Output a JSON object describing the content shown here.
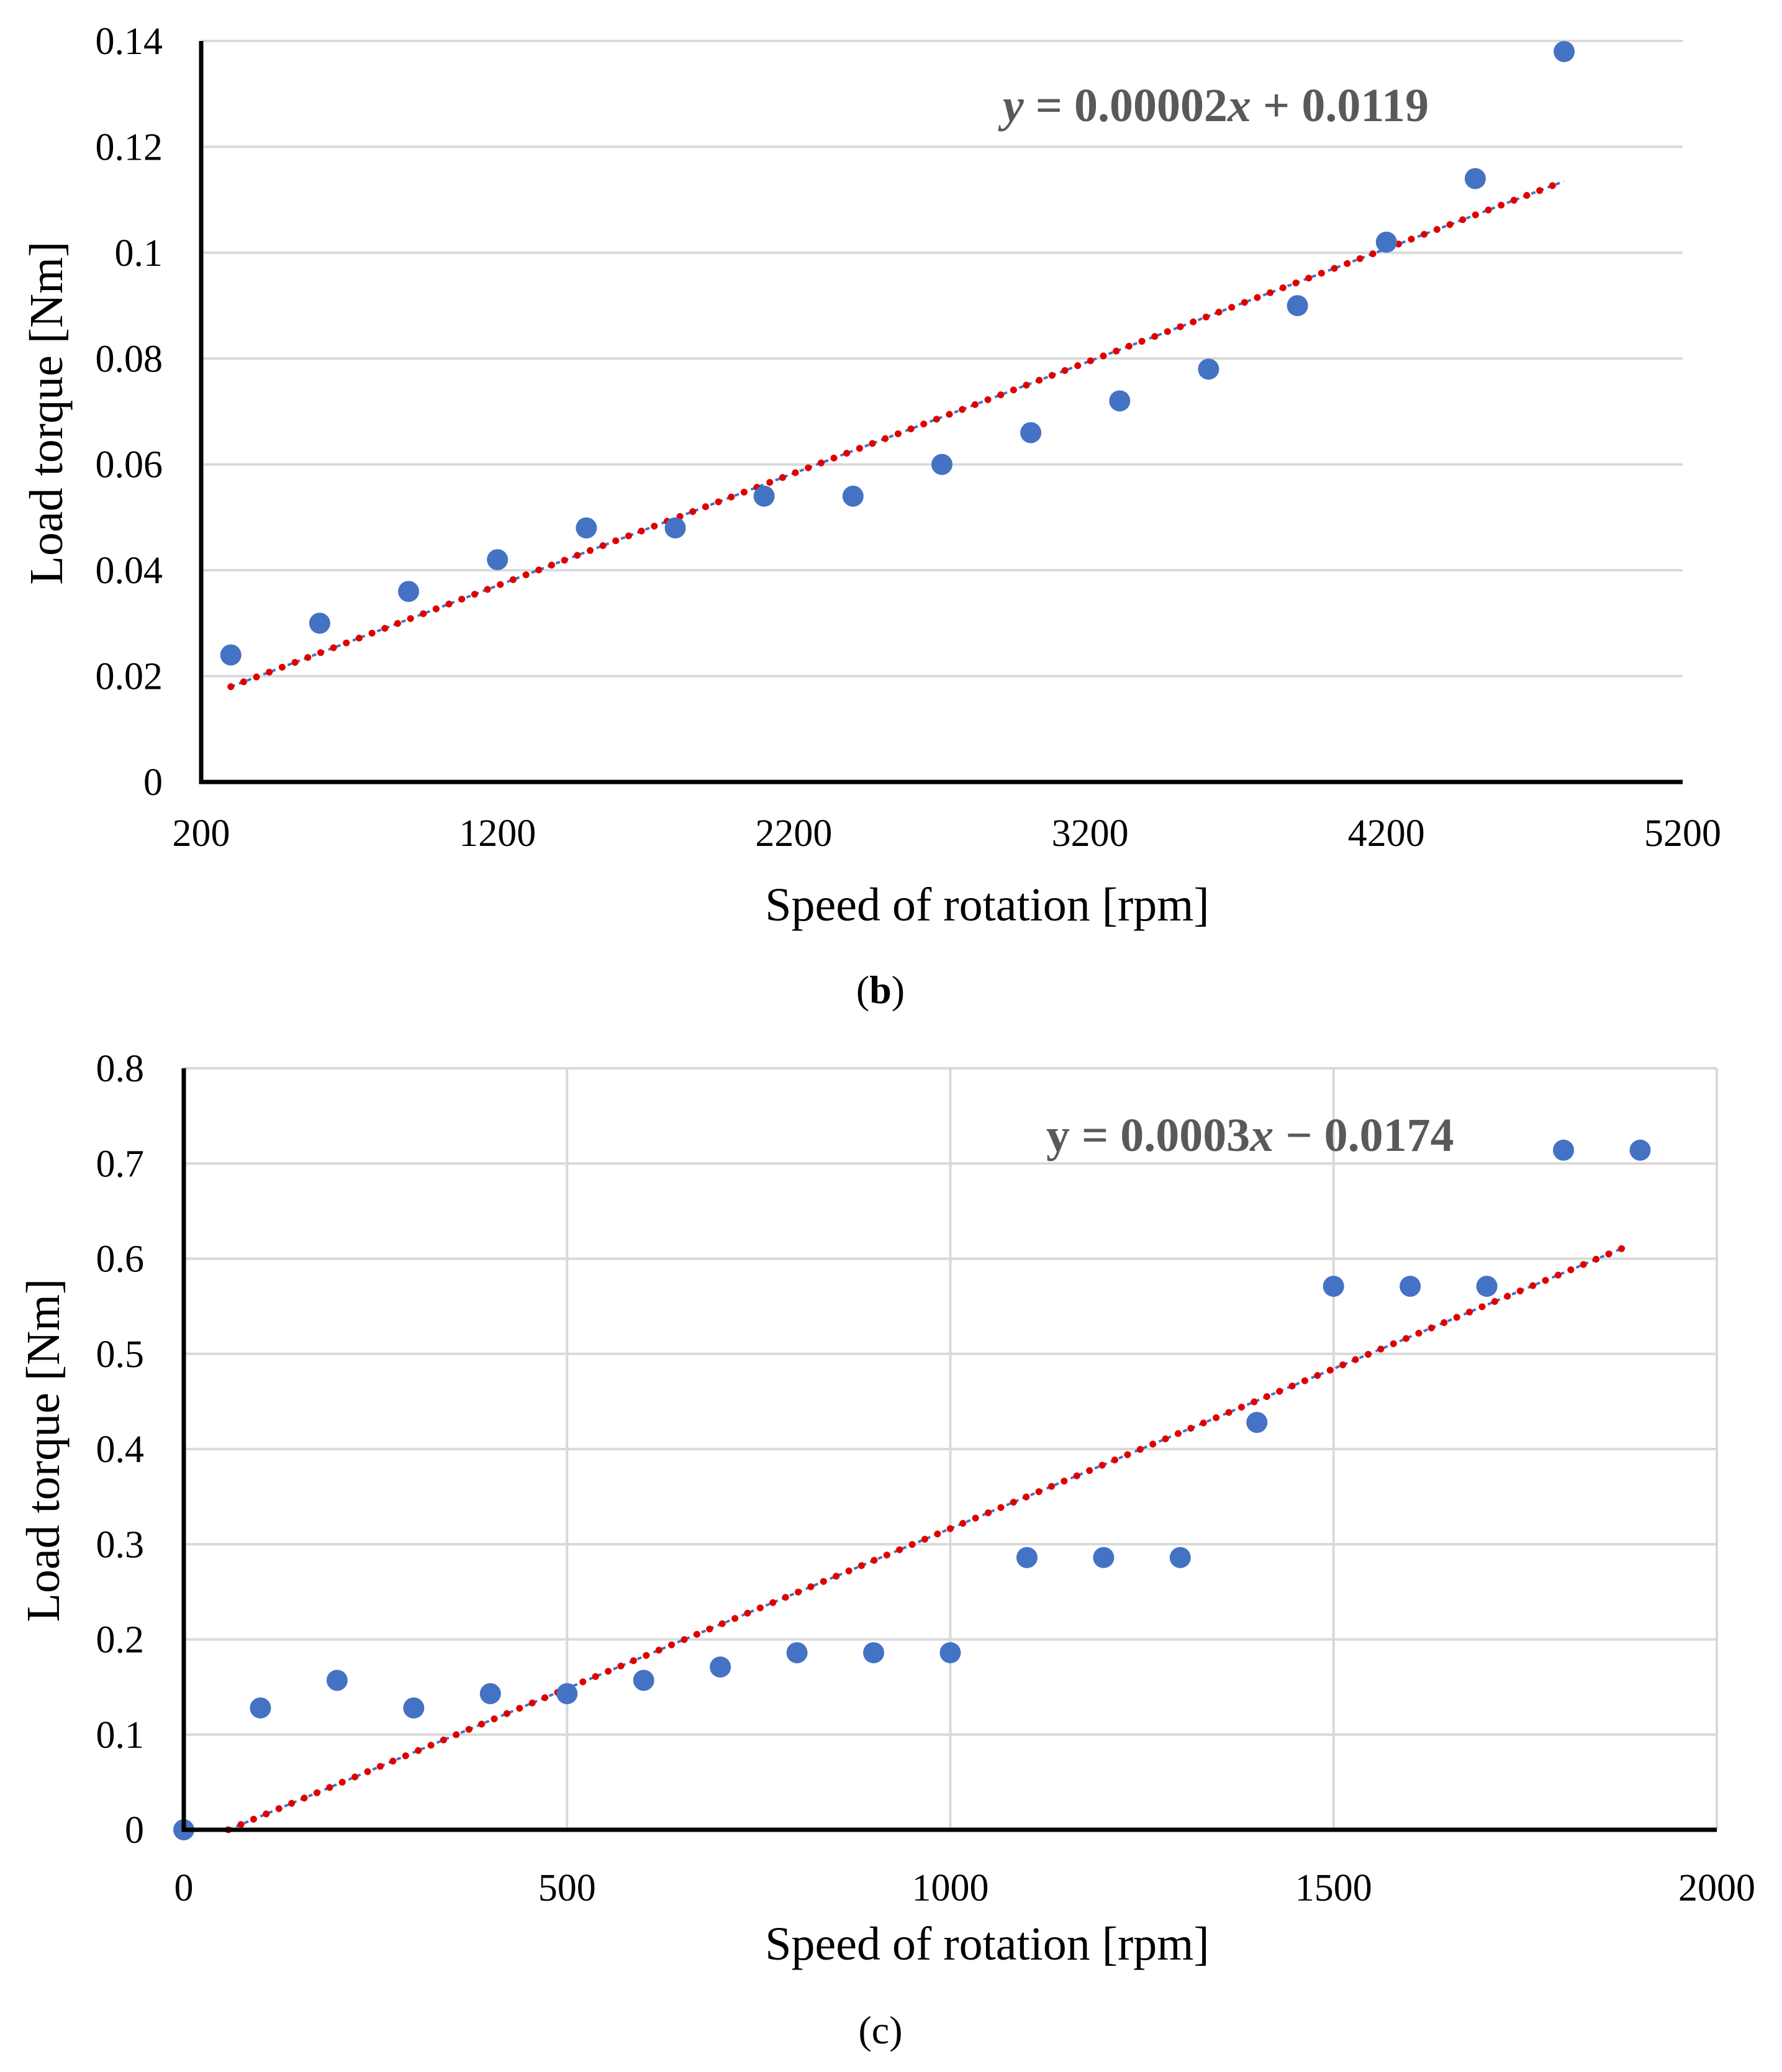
{
  "chart_data": [
    {
      "type": "scatter",
      "panel_label": "b",
      "title": "",
      "xlabel": "Speed of rotation [rpm]",
      "ylabel": "Load torque [Nm]",
      "xlim": [
        200,
        5200
      ],
      "ylim": [
        0,
        0.14
      ],
      "xticks": [
        200,
        1200,
        2200,
        3200,
        4200,
        5200
      ],
      "yticks": [
        0,
        0.02,
        0.04,
        0.06,
        0.08,
        0.1,
        0.12,
        0.14
      ],
      "xtick_labels": [
        "200",
        "1200",
        "2200",
        "3200",
        "4200",
        "5200"
      ],
      "ytick_labels": [
        "0",
        "0.02",
        "0.04",
        "0.06",
        "0.08",
        "0.1",
        "0.12",
        "0.14"
      ],
      "grid": "horizontal",
      "x": [
        300,
        600,
        900,
        1200,
        1500,
        1800,
        2100,
        2400,
        2700,
        3000,
        3300,
        3600,
        3900,
        4200,
        4500,
        4800
      ],
      "values": [
        0.024,
        0.03,
        0.036,
        0.042,
        0.048,
        0.048,
        0.054,
        0.054,
        0.06,
        0.066,
        0.072,
        0.078,
        0.09,
        0.102,
        0.114,
        0.138
      ],
      "trendline": {
        "type": "linear",
        "equation_parts": [
          "y",
          " = 0.00002",
          "x",
          " + 0.0119"
        ],
        "x_range": [
          300,
          4800
        ],
        "y_range": [
          0.018,
          0.1135
        ]
      }
    },
    {
      "type": "scatter",
      "panel_label": "c",
      "title": "",
      "xlabel": "Speed of rotation [rpm]",
      "ylabel": "Load torque [Nm]",
      "xlim": [
        0,
        2000
      ],
      "ylim": [
        0,
        0.8
      ],
      "xticks": [
        0,
        500,
        1000,
        1500,
        2000
      ],
      "yticks": [
        0,
        0.1,
        0.2,
        0.3,
        0.4,
        0.5,
        0.6,
        0.7,
        0.8
      ],
      "xtick_labels": [
        "0",
        "500",
        "1000",
        "1500",
        "2000"
      ],
      "ytick_labels": [
        "0",
        "0.1",
        "0.2",
        "0.3",
        "0.4",
        "0.5",
        "0.6",
        "0.7",
        "0.8"
      ],
      "grid": "both",
      "x": [
        0,
        100,
        200,
        300,
        400,
        500,
        600,
        700,
        800,
        900,
        1000,
        1100,
        1200,
        1300,
        1400,
        1500,
        1600,
        1700,
        1800,
        1900
      ],
      "values": [
        0,
        0.128,
        0.157,
        0.128,
        0.143,
        0.143,
        0.157,
        0.171,
        0.186,
        0.186,
        0.186,
        0.286,
        0.286,
        0.286,
        0.428,
        0.571,
        0.571,
        0.571,
        0.714,
        0.714
      ],
      "trendline": {
        "type": "linear",
        "equation_parts": [
          "y = 0.0003",
          "x",
          " − 0.0174"
        ],
        "x_range": [
          58,
          1880
        ],
        "y_range": [
          0,
          0.612
        ]
      }
    }
  ]
}
